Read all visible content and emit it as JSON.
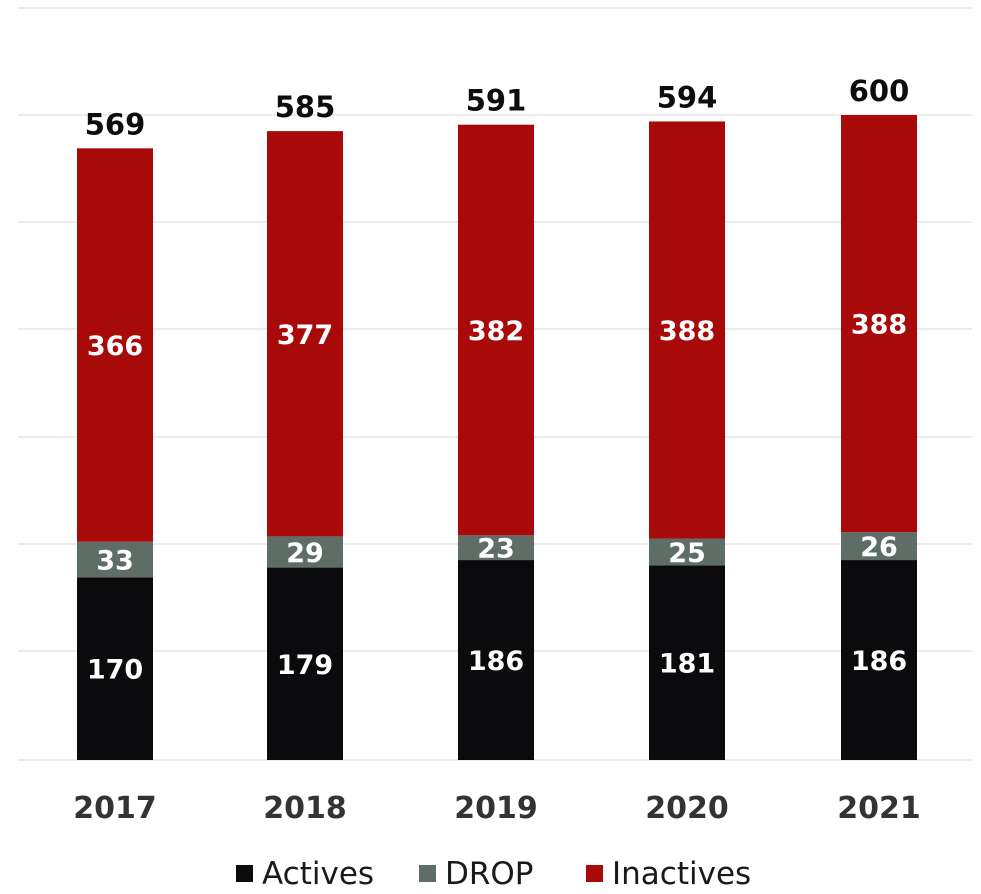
{
  "chart_data": {
    "type": "bar",
    "stacked": true,
    "categories": [
      "2017",
      "2018",
      "2019",
      "2020",
      "2021"
    ],
    "series": [
      {
        "name": "Actives",
        "color": "#0b0a0c",
        "values": [
          170,
          179,
          186,
          181,
          186
        ]
      },
      {
        "name": "DROP",
        "color": "#5e6e66",
        "values": [
          33,
          29,
          23,
          25,
          26
        ]
      },
      {
        "name": "Inactives",
        "color": "#a80a0a",
        "values": [
          366,
          377,
          382,
          388,
          388
        ]
      }
    ],
    "totals": [
      569,
      585,
      591,
      594,
      600
    ],
    "ylim": [
      0,
      600
    ],
    "grid": true,
    "legend_position": "bottom",
    "title": "",
    "xlabel": "",
    "ylabel": ""
  }
}
